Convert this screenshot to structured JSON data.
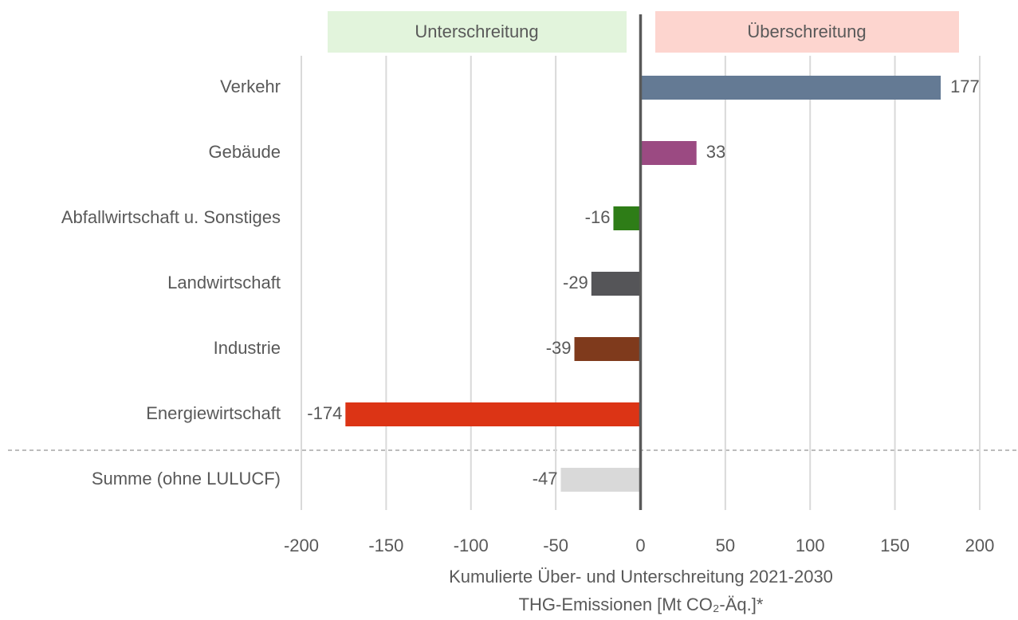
{
  "chart_data": {
    "type": "barh",
    "region_labels": [
      "Unterschreitung",
      "Überschreitung"
    ],
    "categories": [
      "Verkehr",
      "Gebäude",
      "Abfallwirtschaft u. Sonstiges",
      "Landwirtschaft",
      "Industrie",
      "Energiewirtschaft",
      "Summe (ohne LULUCF)"
    ],
    "values": [
      177,
      33,
      -16,
      -29,
      -39,
      -174,
      -47
    ],
    "colors": [
      "#647a94",
      "#9b4a82",
      "#2e7d17",
      "#555558",
      "#7f3a1c",
      "#dc3415",
      "#d9d9d9"
    ],
    "xlim": [
      -200,
      200
    ],
    "xticks": [
      -200,
      -150,
      -100,
      -50,
      0,
      50,
      100,
      150,
      200
    ],
    "x_label": [
      "Kumulierte Über- und Unterschreitung 2021-2030",
      "THG-Emissionen [Mt CO₂-Äq.]*"
    ],
    "grid": true
  }
}
